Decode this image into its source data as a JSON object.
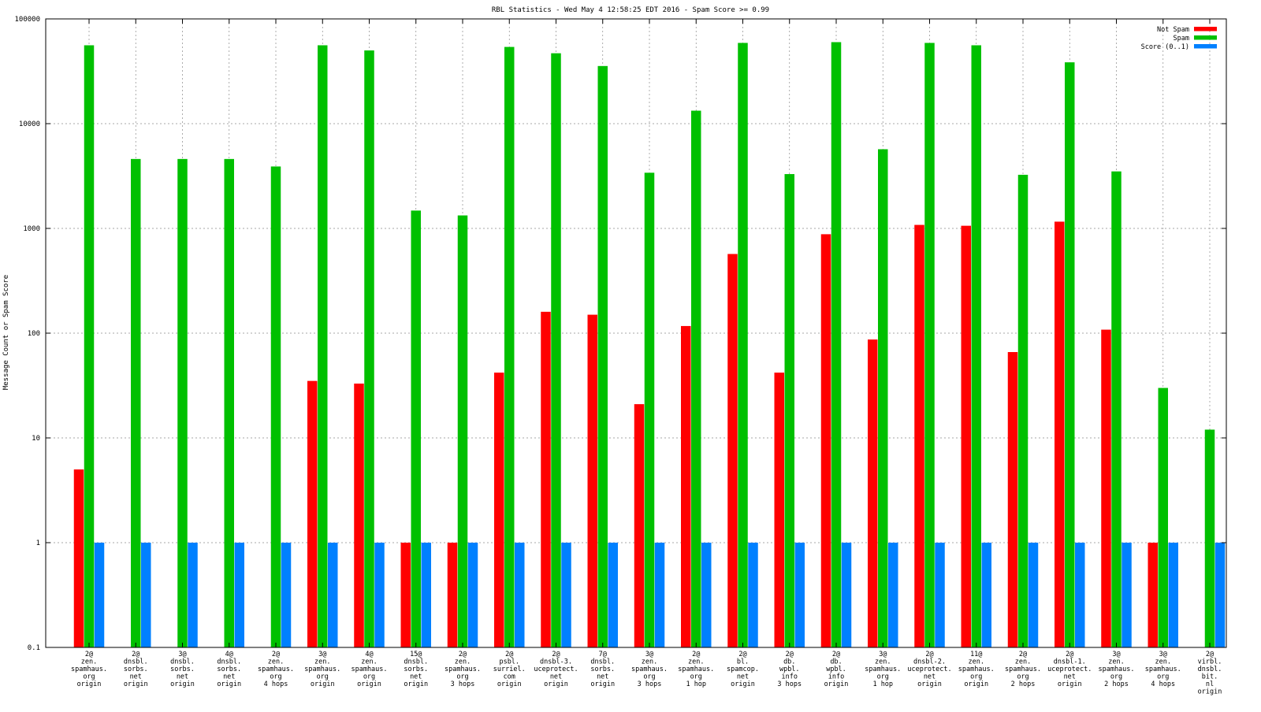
{
  "chart_data": {
    "type": "bar",
    "title": "RBL Statistics - Wed May  4 12:58:25 EDT 2016 - Spam Score >= 0.99",
    "xlabel": "",
    "ylabel": "Message Count or Spam Score",
    "yscale": "log",
    "ylim": [
      0.1,
      100000
    ],
    "yticks": [
      "0.1",
      "1",
      "10",
      "100",
      "1000",
      "10000",
      "100000"
    ],
    "grid": true,
    "legend_position": "top-right",
    "categories": [
      [
        "2@",
        "zen.",
        "spamhaus.",
        "org",
        "origin"
      ],
      [
        "2@",
        "dnsbl.",
        "sorbs.",
        "net",
        "origin"
      ],
      [
        "3@",
        "dnsbl.",
        "sorbs.",
        "net",
        "origin"
      ],
      [
        "4@",
        "dnsbl.",
        "sorbs.",
        "net",
        "origin"
      ],
      [
        "2@",
        "zen.",
        "spamhaus.",
        "org",
        "4 hops"
      ],
      [
        "3@",
        "zen.",
        "spamhaus.",
        "org",
        "origin"
      ],
      [
        "4@",
        "zen.",
        "spamhaus.",
        "org",
        "origin"
      ],
      [
        "15@",
        "dnsbl.",
        "sorbs.",
        "net",
        "origin"
      ],
      [
        "2@",
        "zen.",
        "spamhaus.",
        "org",
        "3 hops"
      ],
      [
        "2@",
        "psbl.",
        "surriel.",
        "com",
        "origin"
      ],
      [
        "2@",
        "dnsbl-3.",
        "uceprotect.",
        "net",
        "origin"
      ],
      [
        "7@",
        "dnsbl.",
        "sorbs.",
        "net",
        "origin"
      ],
      [
        "3@",
        "zen.",
        "spamhaus.",
        "org",
        "3 hops"
      ],
      [
        "2@",
        "zen.",
        "spamhaus.",
        "org",
        "1 hop"
      ],
      [
        "2@",
        "bl.",
        "spamcop.",
        "net",
        "origin"
      ],
      [
        "2@",
        "db.",
        "wpbl.",
        "info",
        "3 hops"
      ],
      [
        "2@",
        "db.",
        "wpbl.",
        "info",
        "origin"
      ],
      [
        "3@",
        "zen.",
        "spamhaus.",
        "org",
        "1 hop"
      ],
      [
        "2@",
        "dnsbl-2.",
        "uceprotect.",
        "net",
        "origin"
      ],
      [
        "11@",
        "zen.",
        "spamhaus.",
        "org",
        "origin"
      ],
      [
        "2@",
        "zen.",
        "spamhaus.",
        "org",
        "2 hops"
      ],
      [
        "2@",
        "dnsbl-1.",
        "uceprotect.",
        "net",
        "origin"
      ],
      [
        "3@",
        "zen.",
        "spamhaus.",
        "org",
        "2 hops"
      ],
      [
        "3@",
        "zen.",
        "spamhaus.",
        "org",
        "4 hops"
      ],
      [
        "2@",
        "virbl.",
        "dnsbl.",
        "bit.",
        "nl",
        "origin"
      ]
    ],
    "series": [
      {
        "name": "Not Spam",
        "color": "#ff0000",
        "values": [
          5,
          null,
          null,
          null,
          null,
          35,
          33,
          1,
          1,
          42,
          160,
          150,
          21,
          117,
          570,
          42,
          880,
          87,
          1080,
          1060,
          66,
          1160,
          108,
          1,
          null
        ]
      },
      {
        "name": "Spam",
        "color": "#00c000",
        "values": [
          56000,
          4600,
          4600,
          4600,
          3900,
          56000,
          50000,
          1480,
          1330,
          54000,
          47000,
          35500,
          3400,
          13300,
          59000,
          3300,
          60000,
          5700,
          59000,
          56000,
          3250,
          38500,
          3500,
          30,
          12
        ]
      },
      {
        "name": "Score (0..1)",
        "color": "#0080ff",
        "values": [
          1,
          1,
          1,
          1,
          1,
          1,
          1,
          1,
          1,
          1,
          1,
          1,
          1,
          1,
          1,
          1,
          1,
          1,
          1,
          1,
          1,
          1,
          1,
          1,
          1
        ]
      }
    ]
  }
}
